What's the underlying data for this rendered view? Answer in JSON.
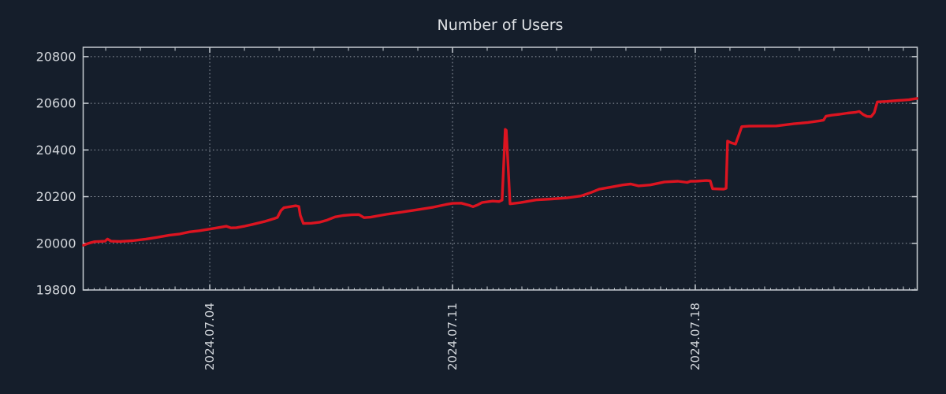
{
  "colors": {
    "background": "#151e2b",
    "axis": "#c6ccd2",
    "grid": "#9aa1ab",
    "text": "#d2d6db",
    "title_text": "#dde0e4",
    "line": "#dc1420"
  },
  "chart_data": {
    "type": "line",
    "title": "Number of Users",
    "legend": "none",
    "grid": "dotted",
    "x_axis": {
      "unit": "day of July 2024 (fractional; 4.0 = 2024-07-04)",
      "range": [
        0.35,
        24.4
      ],
      "major_ticks": [
        {
          "day": 4,
          "label": "2024.07.04"
        },
        {
          "day": 11,
          "label": "2024.07.11"
        },
        {
          "day": 18,
          "label": "2024.07.18"
        }
      ],
      "minor_tick_interval_days": 1,
      "subminor_tick_interval_days": 0.1667
    },
    "y_axis": {
      "range": [
        19800,
        20840
      ],
      "ticks": [
        19800,
        20000,
        20200,
        20400,
        20600,
        20800
      ]
    },
    "series": [
      {
        "name": "Number of Users",
        "color": "#dc1420",
        "points": [
          [
            0.36,
            19992
          ],
          [
            0.5,
            20000
          ],
          [
            0.68,
            20007
          ],
          [
            0.98,
            20009
          ],
          [
            1.05,
            20018
          ],
          [
            1.16,
            20009
          ],
          [
            1.41,
            20008
          ],
          [
            1.77,
            20011
          ],
          [
            2.16,
            20018
          ],
          [
            2.5,
            20026
          ],
          [
            2.84,
            20035
          ],
          [
            3.14,
            20040
          ],
          [
            3.41,
            20049
          ],
          [
            3.7,
            20054
          ],
          [
            4.0,
            20061
          ],
          [
            4.32,
            20069
          ],
          [
            4.48,
            20073
          ],
          [
            4.61,
            20066
          ],
          [
            4.77,
            20067
          ],
          [
            5.02,
            20074
          ],
          [
            5.23,
            20081
          ],
          [
            5.57,
            20093
          ],
          [
            5.86,
            20106
          ],
          [
            5.95,
            20111
          ],
          [
            6.05,
            20140
          ],
          [
            6.14,
            20153
          ],
          [
            6.32,
            20157
          ],
          [
            6.48,
            20161
          ],
          [
            6.57,
            20158
          ],
          [
            6.61,
            20120
          ],
          [
            6.7,
            20085
          ],
          [
            6.93,
            20086
          ],
          [
            7.16,
            20090
          ],
          [
            7.39,
            20100
          ],
          [
            7.61,
            20113
          ],
          [
            7.84,
            20119
          ],
          [
            8.09,
            20122
          ],
          [
            8.3,
            20123
          ],
          [
            8.45,
            20110
          ],
          [
            8.64,
            20112
          ],
          [
            9.09,
            20124
          ],
          [
            9.55,
            20134
          ],
          [
            10.0,
            20144
          ],
          [
            10.45,
            20155
          ],
          [
            10.8,
            20166
          ],
          [
            11.0,
            20171
          ],
          [
            11.25,
            20172
          ],
          [
            11.48,
            20163
          ],
          [
            11.59,
            20157
          ],
          [
            11.73,
            20165
          ],
          [
            11.86,
            20175
          ],
          [
            12.16,
            20181
          ],
          [
            12.34,
            20179
          ],
          [
            12.43,
            20185
          ],
          [
            12.52,
            20488
          ],
          [
            12.55,
            20484
          ],
          [
            12.66,
            20169
          ],
          [
            12.95,
            20174
          ],
          [
            13.41,
            20186
          ],
          [
            13.86,
            20190
          ],
          [
            14.32,
            20195
          ],
          [
            14.7,
            20203
          ],
          [
            15.0,
            20218
          ],
          [
            15.23,
            20232
          ],
          [
            15.57,
            20241
          ],
          [
            15.91,
            20250
          ],
          [
            16.14,
            20254
          ],
          [
            16.36,
            20246
          ],
          [
            16.7,
            20250
          ],
          [
            17.11,
            20263
          ],
          [
            17.5,
            20266
          ],
          [
            17.77,
            20261
          ],
          [
            17.86,
            20266
          ],
          [
            18.0,
            20266
          ],
          [
            18.32,
            20269
          ],
          [
            18.43,
            20268
          ],
          [
            18.5,
            20234
          ],
          [
            18.82,
            20232
          ],
          [
            18.89,
            20236
          ],
          [
            18.93,
            20438
          ],
          [
            19.05,
            20430
          ],
          [
            19.16,
            20425
          ],
          [
            19.27,
            20470
          ],
          [
            19.34,
            20500
          ],
          [
            19.55,
            20502
          ],
          [
            20.34,
            20503
          ],
          [
            20.84,
            20512
          ],
          [
            21.25,
            20518
          ],
          [
            21.59,
            20525
          ],
          [
            21.7,
            20528
          ],
          [
            21.77,
            20545
          ],
          [
            21.93,
            20549
          ],
          [
            22.16,
            20553
          ],
          [
            22.39,
            20558
          ],
          [
            22.61,
            20561
          ],
          [
            22.73,
            20565
          ],
          [
            22.84,
            20552
          ],
          [
            22.95,
            20544
          ],
          [
            23.07,
            20543
          ],
          [
            23.16,
            20560
          ],
          [
            23.25,
            20606
          ],
          [
            23.52,
            20608
          ],
          [
            23.86,
            20612
          ],
          [
            24.16,
            20615
          ],
          [
            24.39,
            20621
          ]
        ]
      }
    ]
  }
}
